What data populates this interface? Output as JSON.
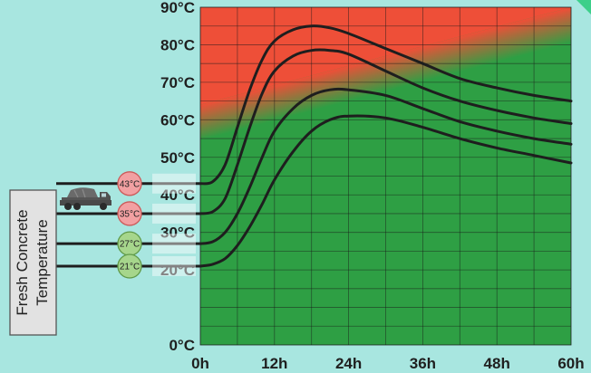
{
  "side_label": {
    "line1": "Fresh Concrete",
    "line2": "Temperature"
  },
  "truck_icon": "concrete-mixer-truck-icon",
  "colors": {
    "background": "#a8e6e0",
    "hot_zone": "#ee4f38",
    "safe_zone": "#2e9f44",
    "grid": "#1a1a1a",
    "curve": "#1e1e1e",
    "badge_hot_fill": "#f2a0a2",
    "badge_hot_stroke": "#cc5a5a",
    "badge_cool_fill": "#a6d68c",
    "badge_cool_stroke": "#5f9a48"
  },
  "chart_data": {
    "type": "line",
    "xunit": "h",
    "yunit": "°C",
    "xlim": [
      0,
      60
    ],
    "ylim": [
      0,
      90
    ],
    "x_ticks": [
      0,
      12,
      24,
      36,
      48,
      60
    ],
    "x_tick_labels": [
      "0h",
      "12h",
      "24h",
      "36h",
      "48h",
      "60h"
    ],
    "y_ticks": [
      0,
      20,
      30,
      40,
      50,
      60,
      70,
      80,
      90
    ],
    "y_tick_labels": [
      "0°C",
      "20°C",
      "30°C",
      "40°C",
      "50°C",
      "60°C",
      "70°C",
      "80°C",
      "90°C"
    ],
    "grid": true,
    "zones": [
      {
        "name": "hot",
        "color": "#ee4f38",
        "boundary_x": [
          0,
          60
        ],
        "boundary_y": [
          64,
          90
        ]
      },
      {
        "name": "safe",
        "color": "#2e9f44"
      }
    ],
    "series": [
      {
        "start_label": "43°C",
        "start_temp": 43,
        "x": [
          0,
          2,
          4,
          6,
          8,
          10,
          12,
          15,
          18,
          21,
          24,
          30,
          36,
          42,
          48,
          54,
          60
        ],
        "y": [
          43,
          43.5,
          48,
          58,
          68,
          76,
          81,
          84,
          85,
          84.5,
          83,
          79,
          75,
          71,
          68.5,
          66.5,
          65
        ]
      },
      {
        "start_label": "35°C",
        "start_temp": 35,
        "x": [
          0,
          2,
          4,
          6,
          8,
          10,
          12,
          15,
          18,
          21,
          24,
          30,
          36,
          42,
          48,
          54,
          60
        ],
        "y": [
          35,
          35.5,
          39,
          48,
          58,
          67,
          73,
          77,
          78.5,
          78.5,
          77.5,
          73,
          68.5,
          65,
          62.5,
          60.5,
          59
        ]
      },
      {
        "start_label": "27°C",
        "start_temp": 27,
        "x": [
          0,
          2,
          4,
          6,
          8,
          10,
          12,
          15,
          18,
          21,
          24,
          30,
          36,
          42,
          48,
          54,
          60
        ],
        "y": [
          27,
          27.5,
          30,
          35,
          42,
          50,
          57,
          63,
          66.5,
          68,
          68,
          66.5,
          63,
          59.5,
          57,
          55,
          53.5
        ]
      },
      {
        "start_label": "21°C",
        "start_temp": 21,
        "x": [
          0,
          2,
          4,
          6,
          8,
          10,
          12,
          15,
          18,
          21,
          24,
          30,
          36,
          42,
          48,
          54,
          60
        ],
        "y": [
          21,
          21.5,
          23,
          26.5,
          31.5,
          37.5,
          44,
          51.5,
          57,
          60,
          61,
          60.5,
          58,
          55,
          52.5,
          50.5,
          48.5
        ]
      }
    ]
  }
}
